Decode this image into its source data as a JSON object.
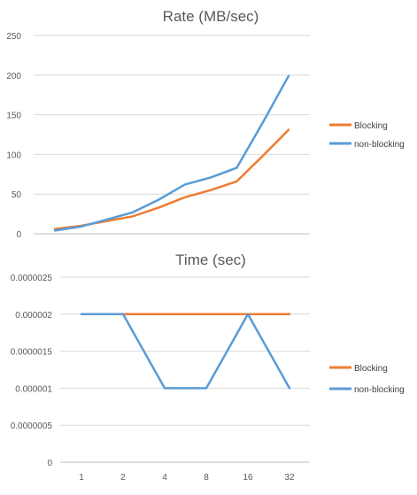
{
  "chart_data": [
    {
      "type": "line",
      "title": "Rate (MB/sec)",
      "xlabel": "",
      "ylabel": "",
      "ylim": [
        0,
        250
      ],
      "yticks": [
        0,
        50,
        100,
        150,
        200,
        250
      ],
      "grid": true,
      "legend_position": "right",
      "series": [
        {
          "name": "Blocking",
          "color": "#ED7D31",
          "values": [
            6,
            10,
            16,
            22,
            33,
            46,
            55,
            66,
            98,
            131
          ]
        },
        {
          "name": "non-blocking",
          "color": "#5B9BD5",
          "values": [
            4,
            9,
            18,
            27,
            43,
            62,
            71,
            83,
            140,
            199
          ]
        }
      ]
    },
    {
      "type": "line",
      "title": "Time (sec)",
      "xlabel": "",
      "ylabel": "",
      "categories": [
        "1",
        "2",
        "4",
        "8",
        "16",
        "32"
      ],
      "ylim": [
        0,
        2.5e-06
      ],
      "yticks": [
        "0",
        "0.0000005",
        "0.000001",
        "0.0000015",
        "0.000002",
        "0.0000025"
      ],
      "grid": true,
      "legend_position": "right",
      "series": [
        {
          "name": "Blocking",
          "color": "#ED7D31",
          "values": [
            2e-06,
            2e-06,
            2e-06,
            2e-06,
            2e-06,
            2e-06
          ]
        },
        {
          "name": "non-blocking",
          "color": "#5B9BD5",
          "values": [
            2e-06,
            2e-06,
            1e-06,
            1e-06,
            2e-06,
            1e-06
          ]
        }
      ]
    }
  ]
}
